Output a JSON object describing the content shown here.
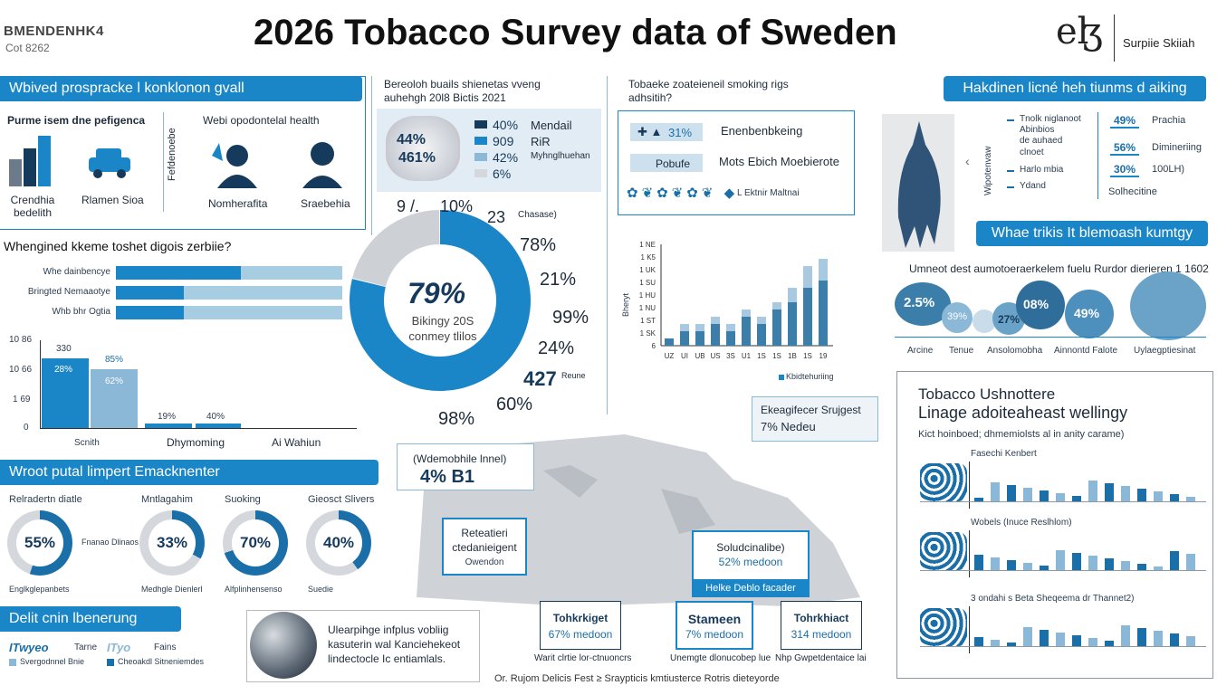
{
  "header": {
    "logo_left_line1": "BMENDENHK4",
    "logo_left_line2": "Cot 8262",
    "title": "2026 Tobacco Survey data of Sweden",
    "logo_right_mark": "eɮ",
    "logo_right_text": "Surpiie Skiiah"
  },
  "panel1": {
    "heading": "Wbived prospracke l konklonon gvall",
    "sub1": "Purme isem dne pefigenca",
    "sub2": "Webi opodontelal health",
    "vertical_label": "Fefdenoebe",
    "labels": [
      "Crendhia bedelith",
      "Rlamen Sioa",
      "Nomherafita",
      "Sraebehia"
    ]
  },
  "hbar_section": {
    "heading": "Whengined kkeme toshet digois zerbiie?",
    "rows": [
      {
        "label": "Whe dainbencye",
        "value": 0.55
      },
      {
        "label": "Bringted Nemaaotye",
        "value": 0.3
      },
      {
        "label": "Whb bhr Ogtia",
        "value": 0.3
      }
    ]
  },
  "vbar_section": {
    "y_ticks": [
      "10 86",
      "10 66",
      "1 69",
      "0"
    ],
    "categories": [
      "Scnith",
      "Dhymoming",
      "Ai Wahiun"
    ],
    "bar_labels": [
      "330",
      "28%",
      "85%",
      "62%",
      "19%",
      "40%"
    ]
  },
  "mid_top": {
    "heading": "Bereoloh buails shienetas vveng auhehgh 20l8 Bictis 2021",
    "legend": [
      {
        "pct": "40%",
        "label": "Mendail"
      },
      {
        "pct": "909",
        "label": "RiR"
      },
      {
        "pct": "42%",
        "label": "Myhnglhuehan"
      },
      {
        "pct": "6%",
        "label": ""
      }
    ],
    "image_pct1": "44%",
    "image_pct2": "461%"
  },
  "big_donut": {
    "center_value": "79%",
    "center_sub": "Bikingy 20S conmey tlilos",
    "labels": [
      "9 /.",
      "10%",
      "23",
      "Chasase)",
      "78%",
      "21%",
      "99%",
      "24%",
      "427",
      "Reune",
      "60%",
      "98%"
    ]
  },
  "right_top_mid": {
    "heading": "Tobaeke zoateieneil smoking rigs adhsitih?",
    "row1_pct": "31%",
    "row1_label": "Enenbenbkeing",
    "row2_label": "Pobufe",
    "row2_text": "Mots Ebich Moebierote",
    "row3_text": "L Ektnir Maltnai"
  },
  "stacked_chart": {
    "y_ticks": [
      "1 NE",
      "1 K5",
      "1 UK",
      "1 SU",
      "1 HU",
      "1 NU",
      "1 ST",
      "1 SK",
      "6"
    ],
    "x_ticks": [
      "UZ",
      "UI",
      "UB",
      "US",
      "3S",
      "U1",
      "1S",
      "1S",
      "1B",
      "1S",
      "19"
    ],
    "axis_label": "Bheryt",
    "legend": "Kbidtehuriing",
    "chart_data": {
      "type": "bar",
      "categories": [
        "UZ",
        "UI",
        "UB",
        "US",
        "3S",
        "U1",
        "1S",
        "1S",
        "1B",
        "1S",
        "19"
      ],
      "series": [
        {
          "values": [
            1,
            2,
            2,
            3,
            2,
            4,
            3,
            5,
            6,
            8,
            9
          ]
        },
        {
          "values": [
            0,
            1,
            1,
            1,
            1,
            1,
            1,
            1,
            2,
            3,
            3
          ]
        }
      ],
      "ylim": [
        0,
        14
      ]
    }
  },
  "right_top": {
    "heading": "Hakdinen licné heh tiunms d aiking",
    "vertical_label": "Wipotenvaw",
    "items": [
      "Tnolk niglanoot",
      "Abinbios",
      "de auhaed",
      "clnoet",
      "Harlo mbia",
      "Ydand"
    ],
    "pcts": [
      {
        "pct": "49%",
        "label": "Prachia"
      },
      {
        "pct": "56%",
        "label": "Dimineriing"
      },
      {
        "pct": "30%",
        "label": "100LH)"
      }
    ],
    "foot": "Solhecitine"
  },
  "right_mid": {
    "heading": "Whae trikis It blemoash kumtgy",
    "subheading": "Umneot dest aumotoeraerkelem fuelu Rurdor dierieren 1 1602",
    "bubbles": [
      "2.5%",
      "39%",
      "27%",
      "08%",
      "49%"
    ],
    "labels": [
      "Arcine",
      "Tenue",
      "Ansolomobha",
      "Ainnontd Falote",
      "Uylaegptiesinat"
    ]
  },
  "right_bottom": {
    "title1": "Tobacco Ushnottere",
    "title2": "Linage adoiteaheast wellingy",
    "sub": "Kict hoinboed; dhmemiolsts al in anity carame)",
    "rows": [
      "Fasechi Kenbert",
      "Wobels (Inuce Reslhlom)",
      "3 ondahi s Beta Sheqeema dr Thannet2)"
    ]
  },
  "left_bottom": {
    "heading": "Wroot putal limpert Emacknenter",
    "donuts": [
      {
        "title": "Relradertn diatle",
        "value": 0.55,
        "label": "55%",
        "foot": "Englkglepanbets",
        "side": "Fnanao Dlinaos"
      },
      {
        "title": "Mntlagahim",
        "value": 0.33,
        "label": "33%",
        "foot": "Medhgle Dienlerl"
      },
      {
        "title": "Suoking",
        "value": 0.7,
        "label": "70%",
        "foot": "Alfplinhensenso"
      },
      {
        "title": "Gieosct Slivers",
        "value": 0.4,
        "label": "40%",
        "foot": "Suedie"
      }
    ]
  },
  "legend_bottom": {
    "heading": "Delit cnin lbenerung",
    "items": [
      "ITwyeo",
      "Tarne",
      "ITyo",
      "Fains"
    ],
    "foot1": "Svergodnnel Bnie",
    "foot2": "Cheoakdl Sitneniemdes"
  },
  "globe": {
    "text": "Ulearpihge infplus vobliig kasuterin wal Kanciehekeot lindectocle Ic entiamlals."
  },
  "map": {
    "callout1_line1": "(Wdemobhile lnnel)",
    "callout1_line2": "4% B1",
    "callout2_line1": "Ekeagifecer Srujgest",
    "callout2_line2": "7% Nedeu",
    "box1": [
      "Reteatieri",
      "ctedanieigent",
      "Owendon"
    ],
    "box2": [
      "Soludcinalibe)",
      "52% medoon"
    ],
    "box2_band": "Helke Deblo facader",
    "bottom_boxes": [
      {
        "t1": "Tohkrkiget",
        "t2": "67% medoon",
        "foot": "Warit clrtie lor-ctnuoncrs"
      },
      {
        "t1": "Stameen",
        "t2": "7% medoon",
        "foot": "Unemgte dlonucobep lue"
      },
      {
        "t1": "Tohrkhiact",
        "t2": "314 medoon",
        "foot": "Nhp Gwpetdentaice lai"
      }
    ]
  },
  "footer": {
    "source": "Or. Rujom Delicis Fest ≥ Sraypticis kmtiusterce Rotris dieteyorde"
  }
}
